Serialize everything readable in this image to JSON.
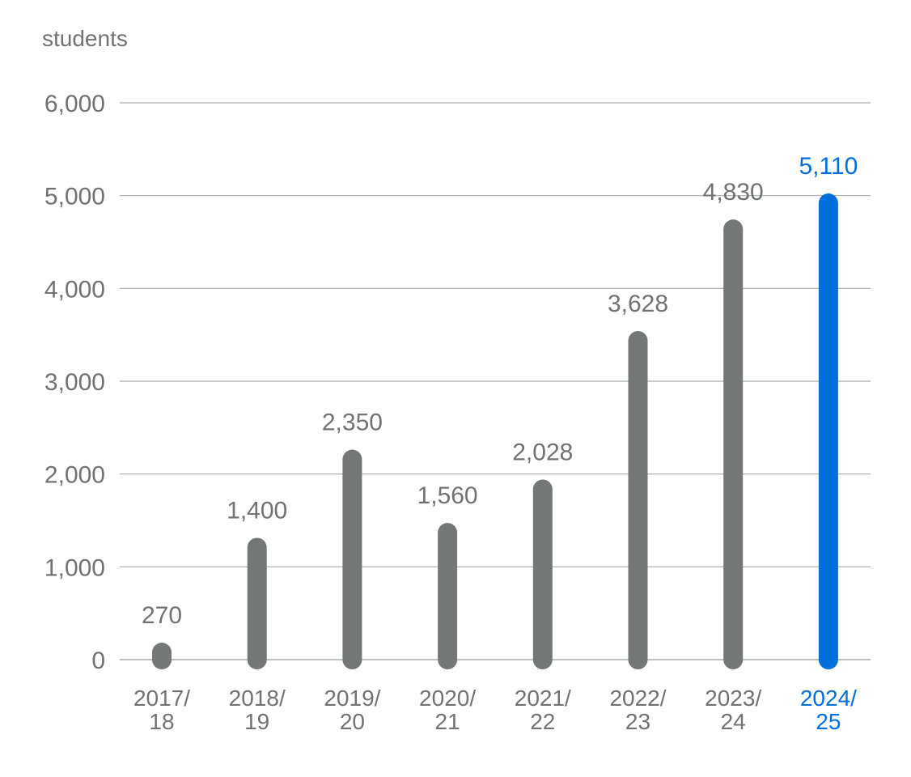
{
  "chart_data": {
    "type": "bar",
    "unit_label": "students",
    "categories": [
      [
        "2017/",
        "18"
      ],
      [
        "2018/",
        "19"
      ],
      [
        "2019/",
        "20"
      ],
      [
        "2020/",
        "21"
      ],
      [
        "2021/",
        "22"
      ],
      [
        "2022/",
        "23"
      ],
      [
        "2023/",
        "24"
      ],
      [
        "2024/",
        "25"
      ]
    ],
    "values": [
      270,
      1400,
      2350,
      1560,
      2028,
      3628,
      4830,
      5110
    ],
    "value_labels": [
      "270",
      "1,400",
      "2,350",
      "1,560",
      "2,028",
      "3,628",
      "4,830",
      "5,110"
    ],
    "highlight_index": 7,
    "ylim": [
      0,
      6000
    ],
    "yticks": [
      0,
      1000,
      2000,
      3000,
      4000,
      5000,
      6000
    ],
    "ytick_labels": [
      "0",
      "1,000",
      "2,000",
      "3,000",
      "4,000",
      "5,000",
      "6,000"
    ],
    "grid": true,
    "colors": {
      "bar": "#747778",
      "highlight": "#006fdc",
      "text": "#6f7375",
      "grid": "#a9abac"
    }
  }
}
